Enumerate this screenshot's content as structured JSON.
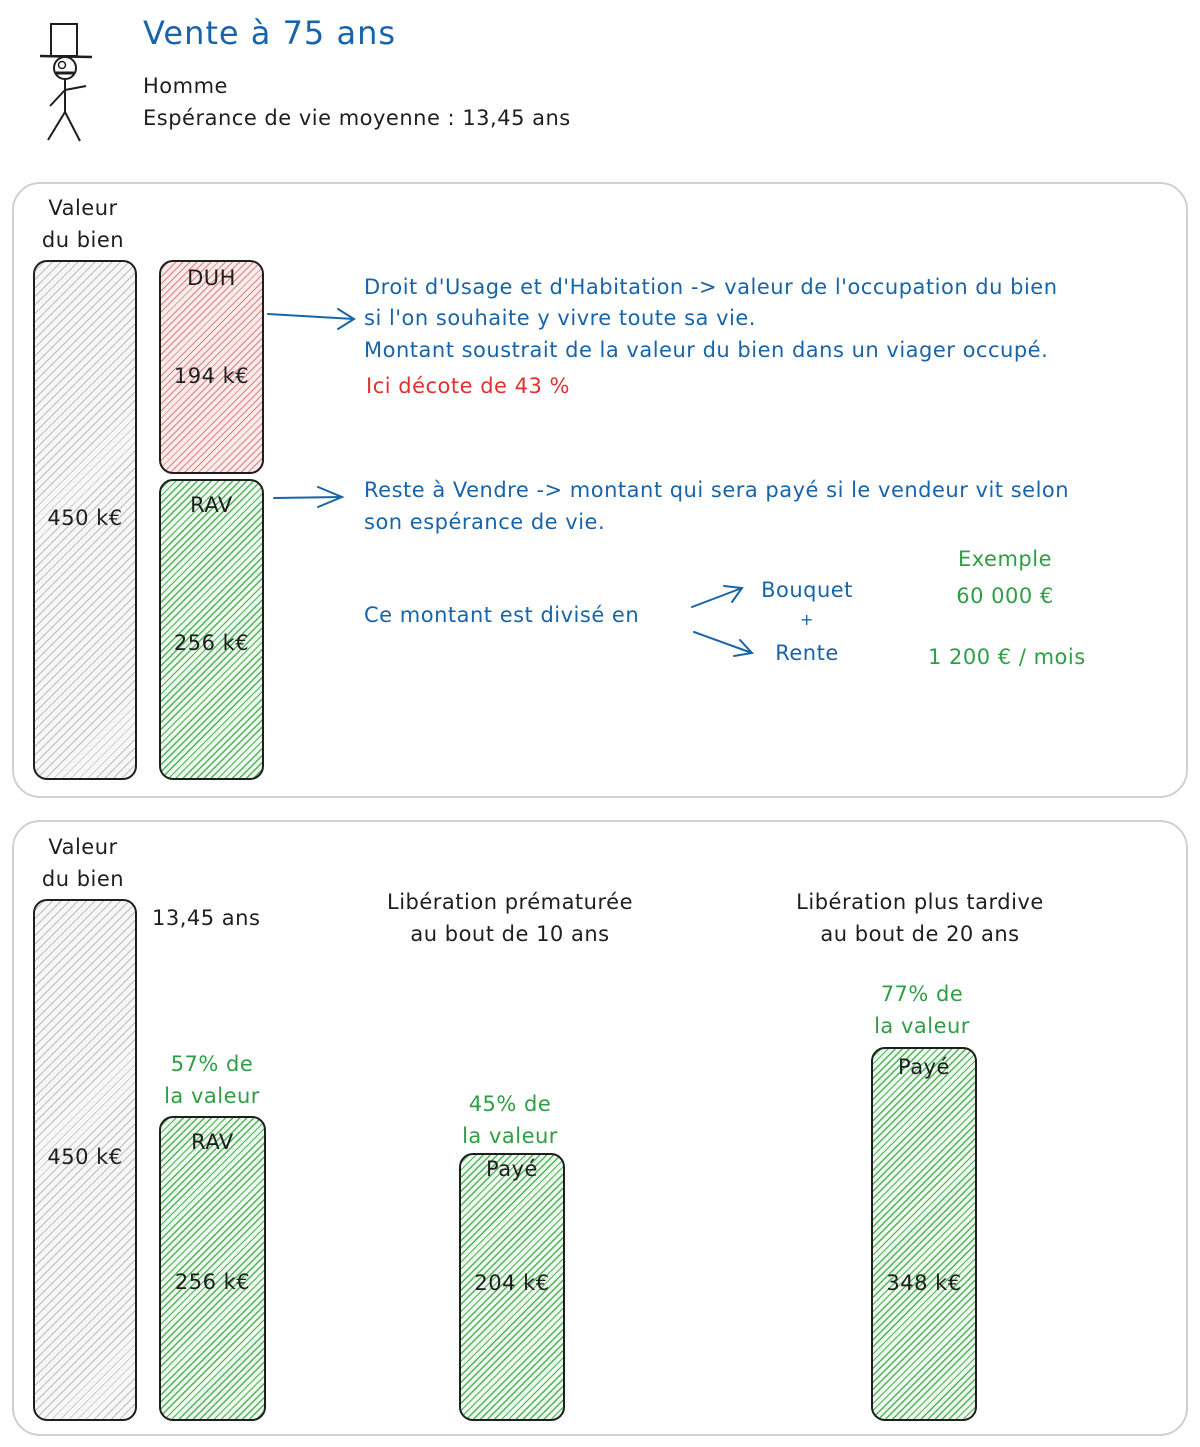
{
  "header": {
    "title": "Vente à 75 ans",
    "line1": "Homme",
    "line2": "Espérance de vie moyenne : 13,45 ans"
  },
  "panel1": {
    "valeur_label_1": "Valeur",
    "valeur_label_2": "du bien",
    "total_value": "450 k€",
    "duh_label": "DUH",
    "duh_value": "194 k€",
    "rav_label": "RAV",
    "rav_value": "256 k€",
    "duh_text_1": "Droit d'Usage et d'Habitation -> valeur de l'occupation du bien",
    "duh_text_2": "si l'on souhaite y vivre toute sa vie.",
    "duh_text_3": "Montant soustrait de la valeur du bien dans un viager occupé.",
    "duh_decote": "Ici décote de 43 %",
    "rav_text_1": "Reste à Vendre -> montant qui sera payé si le vendeur vit selon",
    "rav_text_2": "son espérance de vie.",
    "divise_text": "Ce montant est divisé en",
    "bouquet": "Bouquet",
    "plus": "+",
    "rente": "Rente",
    "exemple": "Exemple",
    "exemple_bouquet": "60 000 €",
    "exemple_rente": "1 200 € / mois"
  },
  "panel2": {
    "valeur_label_1": "Valeur",
    "valeur_label_2": "du bien",
    "total_value": "450 k€",
    "duration_label": "13,45 ans",
    "rav_pct_1": "57% de",
    "rav_pct_2": "la valeur",
    "rav_label": "RAV",
    "rav_value": "256 k€",
    "early_title_1": "Libération prématurée",
    "early_title_2": "au bout de 10 ans",
    "early_pct_1": "45% de",
    "early_pct_2": "la valeur",
    "early_label": "Payé",
    "early_value": "204 k€",
    "late_title_1": "Libération plus tardive",
    "late_title_2": "au bout de 20 ans",
    "late_pct_1": "77% de",
    "late_pct_2": "la valeur",
    "late_label": "Payé",
    "late_value": "348 k€"
  },
  "colors": {
    "blue": "#1864ab",
    "red": "#e03131",
    "green": "#2f9e44",
    "ink": "#1e1e1e"
  }
}
